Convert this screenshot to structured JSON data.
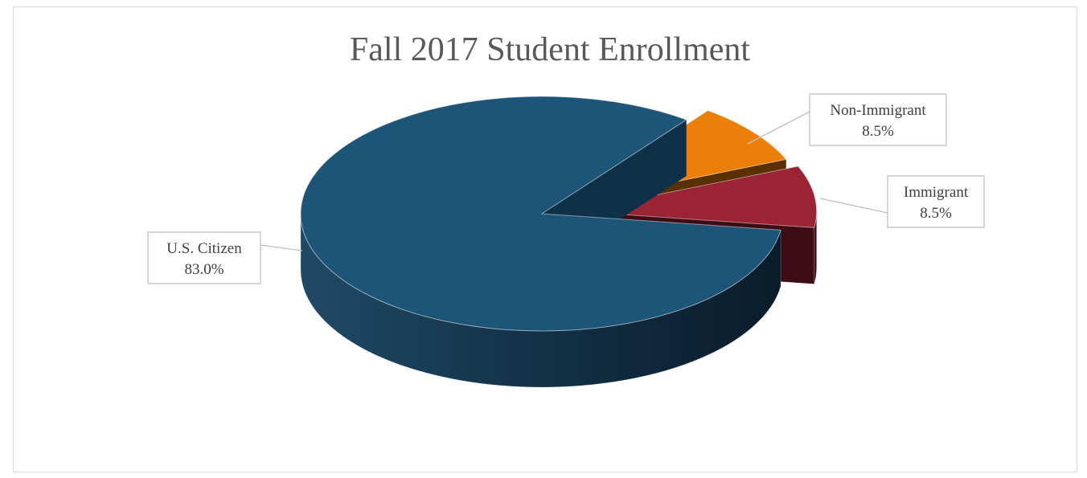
{
  "chart_data": {
    "type": "pie",
    "style": "3d-exploded",
    "title": "Fall 2017 Student Enrollment",
    "slices": [
      {
        "label": "U.S. Citizen",
        "value": 83.0,
        "value_label": "83.0%",
        "color": "#1c5578"
      },
      {
        "label": "Non-Immigrant",
        "value": 8.5,
        "value_label": "8.5%",
        "color": "#ec7e0a"
      },
      {
        "label": "Immigrant",
        "value": 8.5,
        "value_label": "8.5%",
        "color": "#9b2434"
      }
    ],
    "legend": "none"
  }
}
